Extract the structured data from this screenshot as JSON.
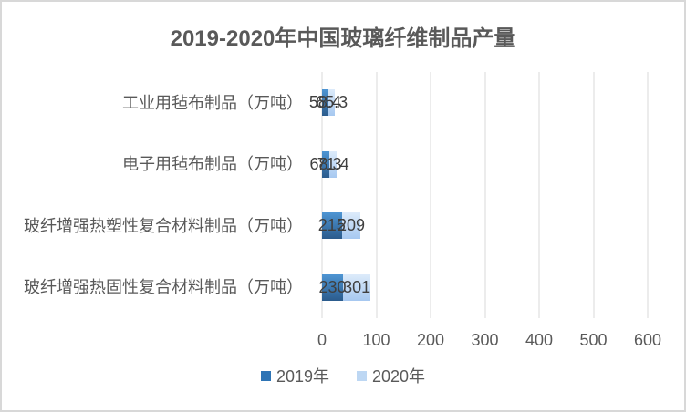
{
  "chart_data": {
    "type": "bar",
    "orientation": "horizontal",
    "stacked": true,
    "title": "2019-2020年中国玻璃纤维制品产量",
    "categories": [
      "工业用毡布制品（万吨）",
      "电子用毡布制品（万吨）",
      "玻纤增强热塑性复合材料制品（万吨）",
      "玻纤增强热固性复合材料制品（万吨）"
    ],
    "series": [
      {
        "name": "2019年",
        "values": [
          58.4,
          68.3,
          215,
          230
        ],
        "labels": [
          "58.4",
          "68.3",
          "215",
          "230"
        ],
        "color_top": "#4e95d3",
        "color_bottom": "#2b5b8c",
        "legend_color": "#2e74b5"
      },
      {
        "name": "2020年",
        "values": [
          65.3,
          71.4,
          209,
          301
        ],
        "labels": [
          "65.3",
          "71.4",
          "209",
          "301"
        ],
        "color_top": "#ddebfa",
        "color_bottom": "#a6c8f0",
        "legend_color": "#bdd7f3"
      }
    ],
    "xlim": [
      0,
      600
    ],
    "x_ticks": [
      0,
      100,
      200,
      300,
      400,
      500,
      600
    ],
    "xlabel": "",
    "ylabel": "",
    "grid": "vertical",
    "legend_position": "bottom"
  },
  "colors": {
    "border": "#d8d8d8",
    "gridline": "#d9d9d9",
    "background": "#ffffff",
    "title_text": "#595959",
    "axis_text": "#595959",
    "data_label_text": "#3f3f3f"
  }
}
